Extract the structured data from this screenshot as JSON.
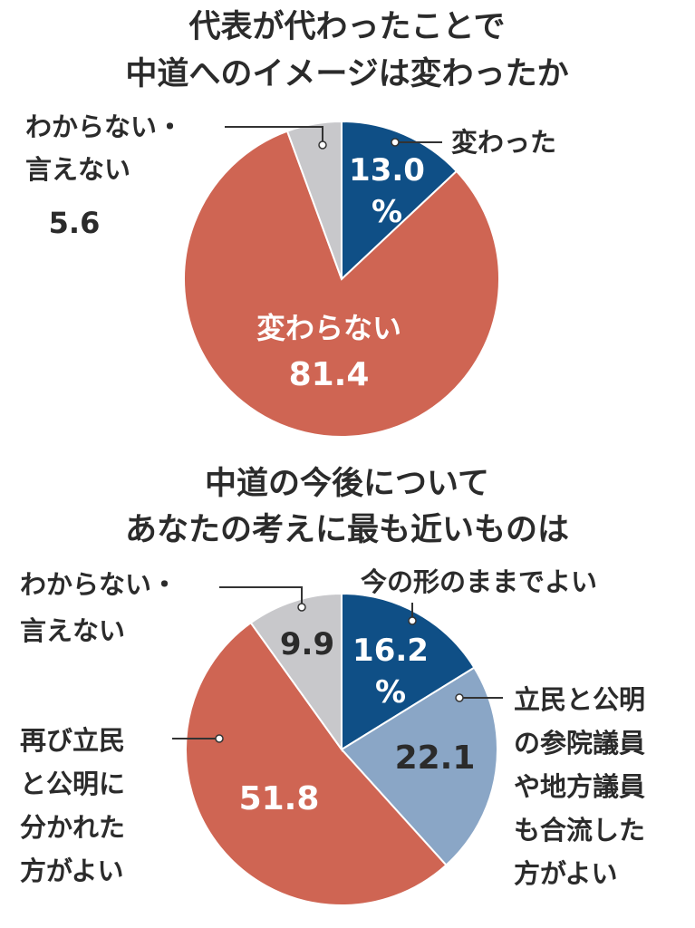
{
  "chart_data": [
    {
      "type": "pie",
      "title": "代表が代わったことで中道へのイメージは変わったか",
      "title_lines": [
        "代表が代わったことで",
        "中道へのイメージは変わったか"
      ],
      "slices": [
        {
          "label": "変わった",
          "value": 13.0,
          "value_text": "13.0",
          "unit": "%",
          "color": "#0f4f86"
        },
        {
          "label": "変わらない",
          "value": 81.4,
          "value_text": "81.4",
          "color": "#cf6553"
        },
        {
          "label": "わからない・言えない",
          "label_lines": [
            "わからない・",
            "言えない"
          ],
          "value": 5.6,
          "value_text": "5.6",
          "color": "#c8c8cb"
        }
      ]
    },
    {
      "type": "pie",
      "title": "中道の今後についてあなたの考えに最も近いものは",
      "title_lines": [
        "中道の今後について",
        "あなたの考えに最も近いものは"
      ],
      "slices": [
        {
          "label": "今の形のままでよい",
          "value": 16.2,
          "value_text": "16.2",
          "unit": "%",
          "color": "#0f4f86"
        },
        {
          "label": "立民と公明の参院議員や地方議員も合流した方がよい",
          "label_lines": [
            "立民と公明",
            "の参院議員",
            "や地方議員",
            "も合流した",
            "方がよい"
          ],
          "value": 22.1,
          "value_text": "22.1",
          "color": "#8aa6c6"
        },
        {
          "label": "再び立民と公明に分かれた方がよい",
          "label_lines": [
            "再び立民",
            "と公明に",
            "分かれた",
            "方がよい"
          ],
          "value": 51.8,
          "value_text": "51.8",
          "color": "#cf6553"
        },
        {
          "label": "わからない・言えない",
          "label_lines": [
            "わからない・",
            "言えない"
          ],
          "value": 9.9,
          "value_text": "9.9",
          "color": "#c8c8cb"
        }
      ]
    }
  ]
}
